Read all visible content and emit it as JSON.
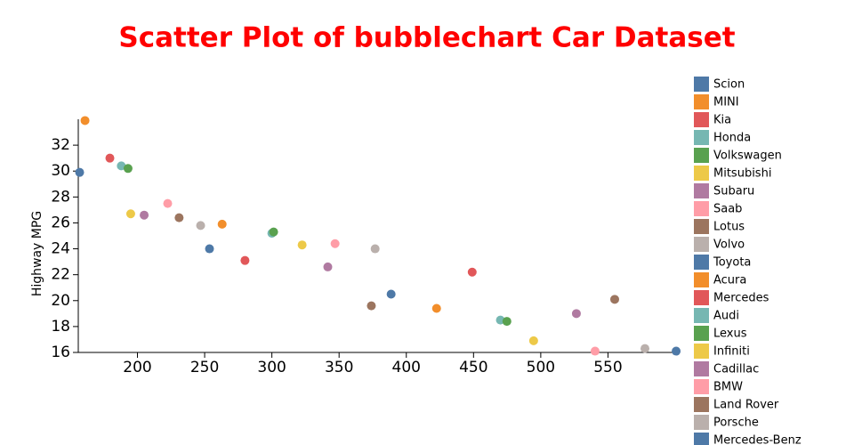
{
  "chart_data": {
    "type": "scatter",
    "title": "Scatter Plot of bubblechart Car Dataset",
    "y_label": "Highway MPG",
    "xlim": [
      156,
      600
    ],
    "ylim": [
      16,
      34
    ],
    "xticks": [
      200,
      250,
      300,
      350,
      400,
      450,
      500,
      550
    ],
    "yticks": [
      16,
      18,
      20,
      22,
      24,
      26,
      28,
      30,
      32
    ],
    "series": [
      {
        "name": "Scion",
        "color": "#4e79a7",
        "x": [
          157
        ],
        "values": [
          29.9
        ]
      },
      {
        "name": "MINI",
        "color": "#f28e2b",
        "x": [
          161
        ],
        "values": [
          33.9
        ]
      },
      {
        "name": "Kia",
        "color": "#e15759",
        "x": [
          179.5
        ],
        "values": [
          31.0
        ]
      },
      {
        "name": "Honda",
        "color": "#76b7b2",
        "x": [
          188
        ],
        "values": [
          30.4
        ]
      },
      {
        "name": "Volkswagen",
        "color": "#59a14f",
        "x": [
          193
        ],
        "values": [
          30.2
        ]
      },
      {
        "name": "Mitsubishi",
        "color": "#edc948",
        "x": [
          195
        ],
        "values": [
          26.7
        ]
      },
      {
        "name": "Subaru",
        "color": "#b07aa1",
        "x": [
          205
        ],
        "values": [
          26.6
        ]
      },
      {
        "name": "Saab",
        "color": "#ff9da7",
        "x": [
          222.5
        ],
        "values": [
          27.5
        ]
      },
      {
        "name": "Lotus",
        "color": "#9c755f",
        "x": [
          231
        ],
        "values": [
          26.4
        ]
      },
      {
        "name": "Volvo",
        "color": "#bab0ac",
        "x": [
          247
        ],
        "values": [
          25.8
        ]
      },
      {
        "name": "Toyota",
        "color": "#4e79a7",
        "x": [
          253.6
        ],
        "values": [
          24.0
        ]
      },
      {
        "name": "Acura",
        "color": "#f28e2b",
        "x": [
          263
        ],
        "values": [
          25.9
        ]
      },
      {
        "name": "Mercedes",
        "color": "#e15759",
        "x": [
          280
        ],
        "values": [
          23.1
        ]
      },
      {
        "name": "Audi",
        "color": "#76b7b2",
        "x": [
          300
        ],
        "values": [
          25.2
        ]
      },
      {
        "name": "Lexus",
        "color": "#59a14f",
        "x": [
          301.3
        ],
        "values": [
          25.3
        ]
      },
      {
        "name": "Infiniti",
        "color": "#edc948",
        "x": [
          322.5
        ],
        "values": [
          24.3
        ]
      },
      {
        "name": "Cadillac",
        "color": "#b07aa1",
        "x": [
          341.6
        ],
        "values": [
          22.6
        ]
      },
      {
        "name": "BMW",
        "color": "#ff9da7",
        "x": [
          347
        ],
        "values": [
          24.4
        ]
      },
      {
        "name": "Land Rover",
        "color": "#9c755f",
        "x": [
          374
        ],
        "values": [
          19.6
        ]
      },
      {
        "name": "Porsche",
        "color": "#bab0ac",
        "x": [
          376.8
        ],
        "values": [
          24.0
        ]
      },
      {
        "name": "Mercedes-Benz",
        "color": "#4e79a7",
        "x": [
          388.7
        ],
        "values": [
          20.5
        ]
      },
      {
        "color": "#f28e2b",
        "x": [
          422.5
        ],
        "values": [
          19.4
        ]
      },
      {
        "color": "#e15759",
        "x": [
          449
        ],
        "values": [
          22.2
        ]
      },
      {
        "color": "#76b7b2",
        "x": [
          470
        ],
        "values": [
          18.5
        ]
      },
      {
        "color": "#59a14f",
        "x": [
          474.8
        ],
        "values": [
          18.4
        ]
      },
      {
        "color": "#edc948",
        "x": [
          494.7
        ],
        "values": [
          16.9
        ]
      },
      {
        "color": "#b07aa1",
        "x": [
          526.5
        ],
        "values": [
          19.0
        ]
      },
      {
        "color": "#ff9da7",
        "x": [
          540.4
        ],
        "values": [
          16.1
        ]
      },
      {
        "color": "#9c755f",
        "x": [
          555
        ],
        "values": [
          20.1
        ]
      },
      {
        "color": "#bab0ac",
        "x": [
          577.5
        ],
        "values": [
          16.3
        ]
      },
      {
        "color": "#4e79a7",
        "x": [
          600.7
        ],
        "values": [
          16.1
        ]
      }
    ]
  }
}
